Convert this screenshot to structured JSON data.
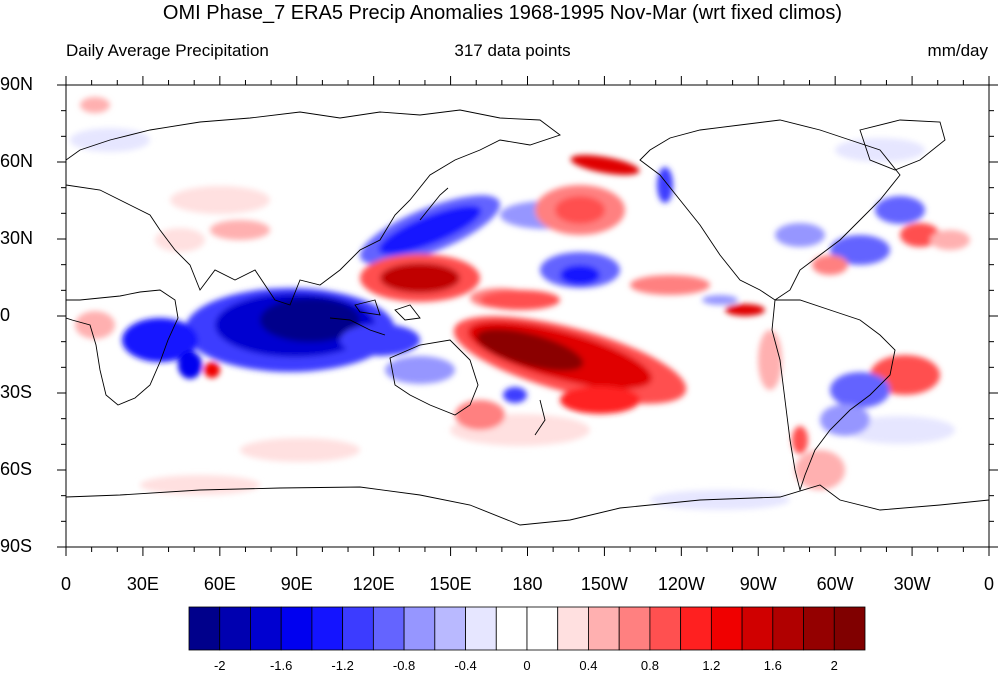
{
  "title": "OMI Phase_7 ERA5 Precip Anomalies 1968-1995 Nov-Mar (wrt fixed climos)",
  "subtitle_left": "Daily Average Precipitation",
  "subtitle_center": "317 data points",
  "subtitle_right": "mm/day",
  "lat_labels": [
    "90N",
    "60N",
    "30N",
    "0",
    "30S",
    "60S",
    "90S"
  ],
  "lon_labels": [
    "0",
    "30E",
    "60E",
    "90E",
    "120E",
    "150E",
    "180",
    "150W",
    "120W",
    "90W",
    "60W",
    "30W",
    "0"
  ],
  "colorbar": {
    "colors": [
      "#00008b",
      "#0000b0",
      "#0000d0",
      "#0000f0",
      "#1414ff",
      "#3c3cff",
      "#6464ff",
      "#9696ff",
      "#b9b9ff",
      "#e6e6ff",
      "#ffffff",
      "#ffffff",
      "#ffe0e0",
      "#ffb0b0",
      "#ff8080",
      "#ff5050",
      "#ff2020",
      "#f00000",
      "#d00000",
      "#b00000",
      "#940000",
      "#800000"
    ],
    "labels": [
      "-2",
      "-1.6",
      "-1.2",
      "-0.8",
      "-0.4",
      "0",
      "0.4",
      "0.8",
      "1.2",
      "1.6",
      "2"
    ]
  },
  "map_features": [
    {
      "name": "Indian Ocean / Maritime Continent",
      "anomaly": "strong negative",
      "color": "#0a0ad8"
    },
    {
      "name": "East Asia / Western North Pacific",
      "anomaly": "negative",
      "color": "#2828ff"
    },
    {
      "name": "Philippine Sea",
      "anomaly": "strong positive",
      "color": "#c00000"
    },
    {
      "name": "South Pacific Convergence Zone",
      "anomaly": "strong positive",
      "color": "#8b0000"
    },
    {
      "name": "North Pacific",
      "anomaly": "positive",
      "color": "#ff6060"
    },
    {
      "name": "Gulf of Alaska coast",
      "anomaly": "positive",
      "color": "#e00000"
    },
    {
      "name": "Central North Pacific",
      "anomaly": "negative",
      "color": "#5050ff"
    },
    {
      "name": "Eastern Equatorial Pacific",
      "anomaly": "positive",
      "color": "#e00000"
    },
    {
      "name": "South America",
      "anomaly": "mixed",
      "color": "#6464ff"
    },
    {
      "name": "South Atlantic",
      "anomaly": "positive",
      "color": "#ff5050"
    }
  ]
}
